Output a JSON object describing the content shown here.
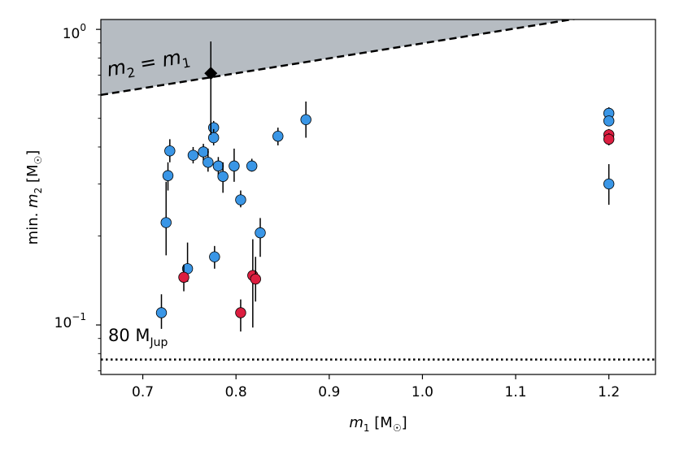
{
  "chart_data": {
    "type": "scatter",
    "xlabel": {
      "var": "m",
      "sub": "1",
      "unit": "[M",
      "sun": "☉",
      "close": "]"
    },
    "ylabel": {
      "prefix": "min. ",
      "var": "m",
      "sub": "2",
      "unit": "[M",
      "sun": "☉",
      "close": "]"
    },
    "xlim": [
      0.655,
      1.25
    ],
    "ylim": [
      0.068,
      1.08
    ],
    "yscale": "log",
    "xticks": [
      "0.7",
      "0.8",
      "0.9",
      "1.0",
      "1.1",
      "1.2"
    ],
    "xtick_values": [
      0.7,
      0.8,
      0.9,
      1.0,
      1.1,
      1.2
    ],
    "yticks": [
      {
        "value": 1.0,
        "base": "10",
        "exp": "0"
      },
      {
        "value": 0.1,
        "base": "10",
        "exp": "−1"
      }
    ],
    "colors": {
      "blue": "#3a96e6",
      "red": "#dc1e40",
      "black": "#000000",
      "shaded": "#b6bcc2"
    },
    "equality_line": {
      "label_var1": "m",
      "label_sub1": "2",
      "label_eq": " = ",
      "label_var2": "m",
      "label_sub2": "1",
      "points": [
        [
          0.655,
          0.6
        ],
        [
          1.25,
          1.2
        ]
      ]
    },
    "jupiter_line": {
      "value": 0.0764,
      "label_main": "80 M",
      "label_sub": "Jup"
    },
    "series": [
      {
        "name": "blue",
        "color": "#3a96e6",
        "points": [
          {
            "x": 0.72,
            "y": 0.11,
            "lo": 0.097,
            "hi": 0.127
          },
          {
            "x": 0.725,
            "y": 0.222,
            "lo": 0.172,
            "hi": 0.305
          },
          {
            "x": 0.727,
            "y": 0.32,
            "lo": 0.285,
            "hi": 0.355
          },
          {
            "x": 0.729,
            "y": 0.388,
            "lo": 0.355,
            "hi": 0.425
          },
          {
            "x": 0.748,
            "y": 0.155,
            "lo": 0.14,
            "hi": 0.19
          },
          {
            "x": 0.754,
            "y": 0.375,
            "lo": 0.352,
            "hi": 0.4
          },
          {
            "x": 0.765,
            "y": 0.385,
            "lo": 0.36,
            "hi": 0.41
          },
          {
            "x": 0.77,
            "y": 0.355,
            "lo": 0.33,
            "hi": 0.395
          },
          {
            "x": 0.776,
            "y": 0.465,
            "lo": 0.44,
            "hi": 0.49
          },
          {
            "x": 0.776,
            "y": 0.43,
            "lo": 0.405,
            "hi": 0.46
          },
          {
            "x": 0.777,
            "y": 0.17,
            "lo": 0.155,
            "hi": 0.185
          },
          {
            "x": 0.781,
            "y": 0.345,
            "lo": 0.32,
            "hi": 0.37
          },
          {
            "x": 0.786,
            "y": 0.318,
            "lo": 0.28,
            "hi": 0.355
          },
          {
            "x": 0.798,
            "y": 0.345,
            "lo": 0.305,
            "hi": 0.395
          },
          {
            "x": 0.805,
            "y": 0.265,
            "lo": 0.25,
            "hi": 0.285
          },
          {
            "x": 0.817,
            "y": 0.345,
            "lo": 0.33,
            "hi": 0.365
          },
          {
            "x": 0.826,
            "y": 0.205,
            "lo": 0.17,
            "hi": 0.23
          },
          {
            "x": 0.845,
            "y": 0.435,
            "lo": 0.405,
            "hi": 0.465
          },
          {
            "x": 0.875,
            "y": 0.495,
            "lo": 0.43,
            "hi": 0.57
          },
          {
            "x": 1.2,
            "y": 0.52,
            "lo": 0.495,
            "hi": 0.545
          },
          {
            "x": 1.2,
            "y": 0.49,
            "lo": 0.47,
            "hi": 0.51
          },
          {
            "x": 1.2,
            "y": 0.3,
            "lo": 0.255,
            "hi": 0.35
          }
        ]
      },
      {
        "name": "red",
        "color": "#dc1e40",
        "points": [
          {
            "x": 0.744,
            "y": 0.145,
            "lo": 0.13,
            "hi": 0.16
          },
          {
            "x": 0.805,
            "y": 0.11,
            "lo": 0.095,
            "hi": 0.122
          },
          {
            "x": 0.818,
            "y": 0.147,
            "lo": 0.098,
            "hi": 0.195
          },
          {
            "x": 0.821,
            "y": 0.143,
            "lo": 0.12,
            "hi": 0.17
          },
          {
            "x": 1.2,
            "y": 0.44,
            "lo": 0.42,
            "hi": 0.46
          },
          {
            "x": 1.2,
            "y": 0.425,
            "lo": 0.405,
            "hi": 0.445
          }
        ]
      },
      {
        "name": "black-diamond",
        "color": "#000000",
        "marker": "diamond",
        "points": [
          {
            "x": 0.773,
            "y": 0.71,
            "lo": 0.44,
            "hi": 0.91
          }
        ]
      }
    ]
  }
}
